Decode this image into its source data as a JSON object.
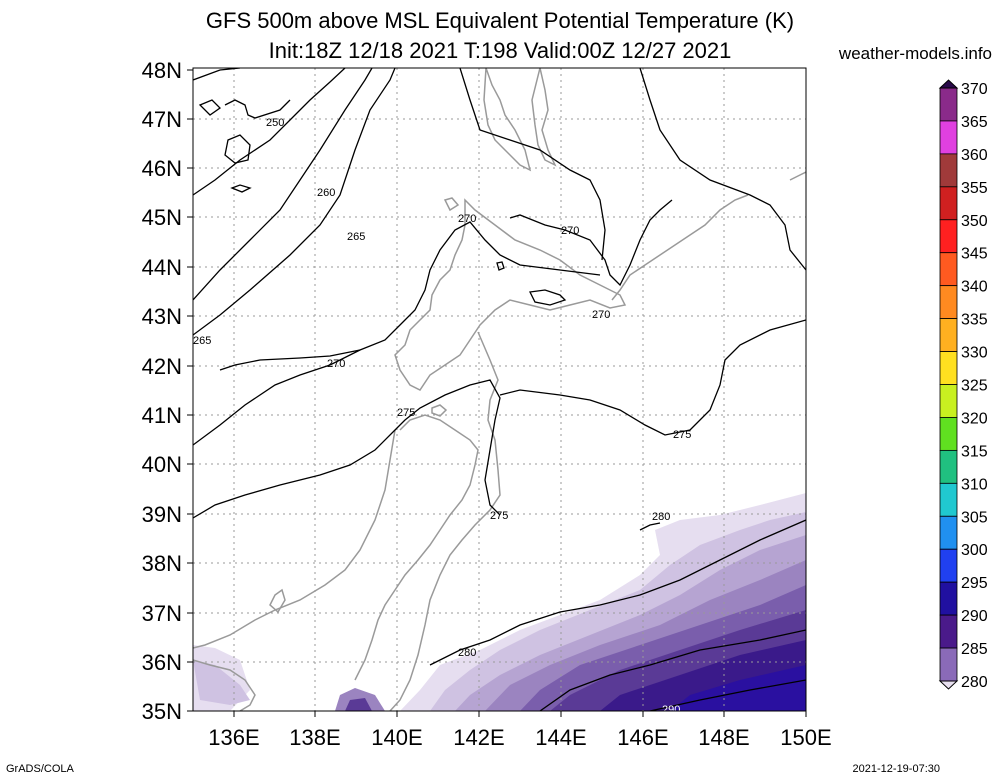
{
  "header": {
    "title_line1": "GFS 500m above MSL Equivalent Potential Temperature (K)",
    "title_line2": "Init:18Z 12/18 2021 T:198 Valid:00Z 12/27 2021",
    "site": "weather-models.info"
  },
  "map": {
    "lat_labels": [
      "48N",
      "47N",
      "46N",
      "45N",
      "44N",
      "43N",
      "42N",
      "41N",
      "40N",
      "39N",
      "38N",
      "37N",
      "36N",
      "35N"
    ],
    "lon_labels": [
      "136E",
      "138E",
      "140E",
      "142E",
      "144E",
      "146E",
      "148E",
      "150E"
    ],
    "contour_labels": [
      "250",
      "260",
      "265",
      "265",
      "270",
      "270",
      "270",
      "270",
      "275",
      "275",
      "275",
      "275",
      "280",
      "280",
      "290"
    ]
  },
  "colorbar": {
    "levels": [
      "370",
      "365",
      "360",
      "355",
      "350",
      "345",
      "340",
      "335",
      "330",
      "325",
      "320",
      "315",
      "310",
      "305",
      "300",
      "295",
      "290",
      "285",
      "280"
    ],
    "colors": [
      "#2a0a4a",
      "#8a2a8a",
      "#e040e0",
      "#a03a3a",
      "#d02020",
      "#ff2020",
      "#ff5a20",
      "#ff8a20",
      "#ffb020",
      "#ffe020",
      "#c8f020",
      "#60e020",
      "#20c080",
      "#20c8d0",
      "#2090f0",
      "#2040f0",
      "#2010a0",
      "#4a1a8a",
      "#8a6ab8",
      "#e8e0f0"
    ]
  },
  "footer": {
    "left": "GrADS/COLA",
    "right": "2021-12-19-07:30"
  }
}
